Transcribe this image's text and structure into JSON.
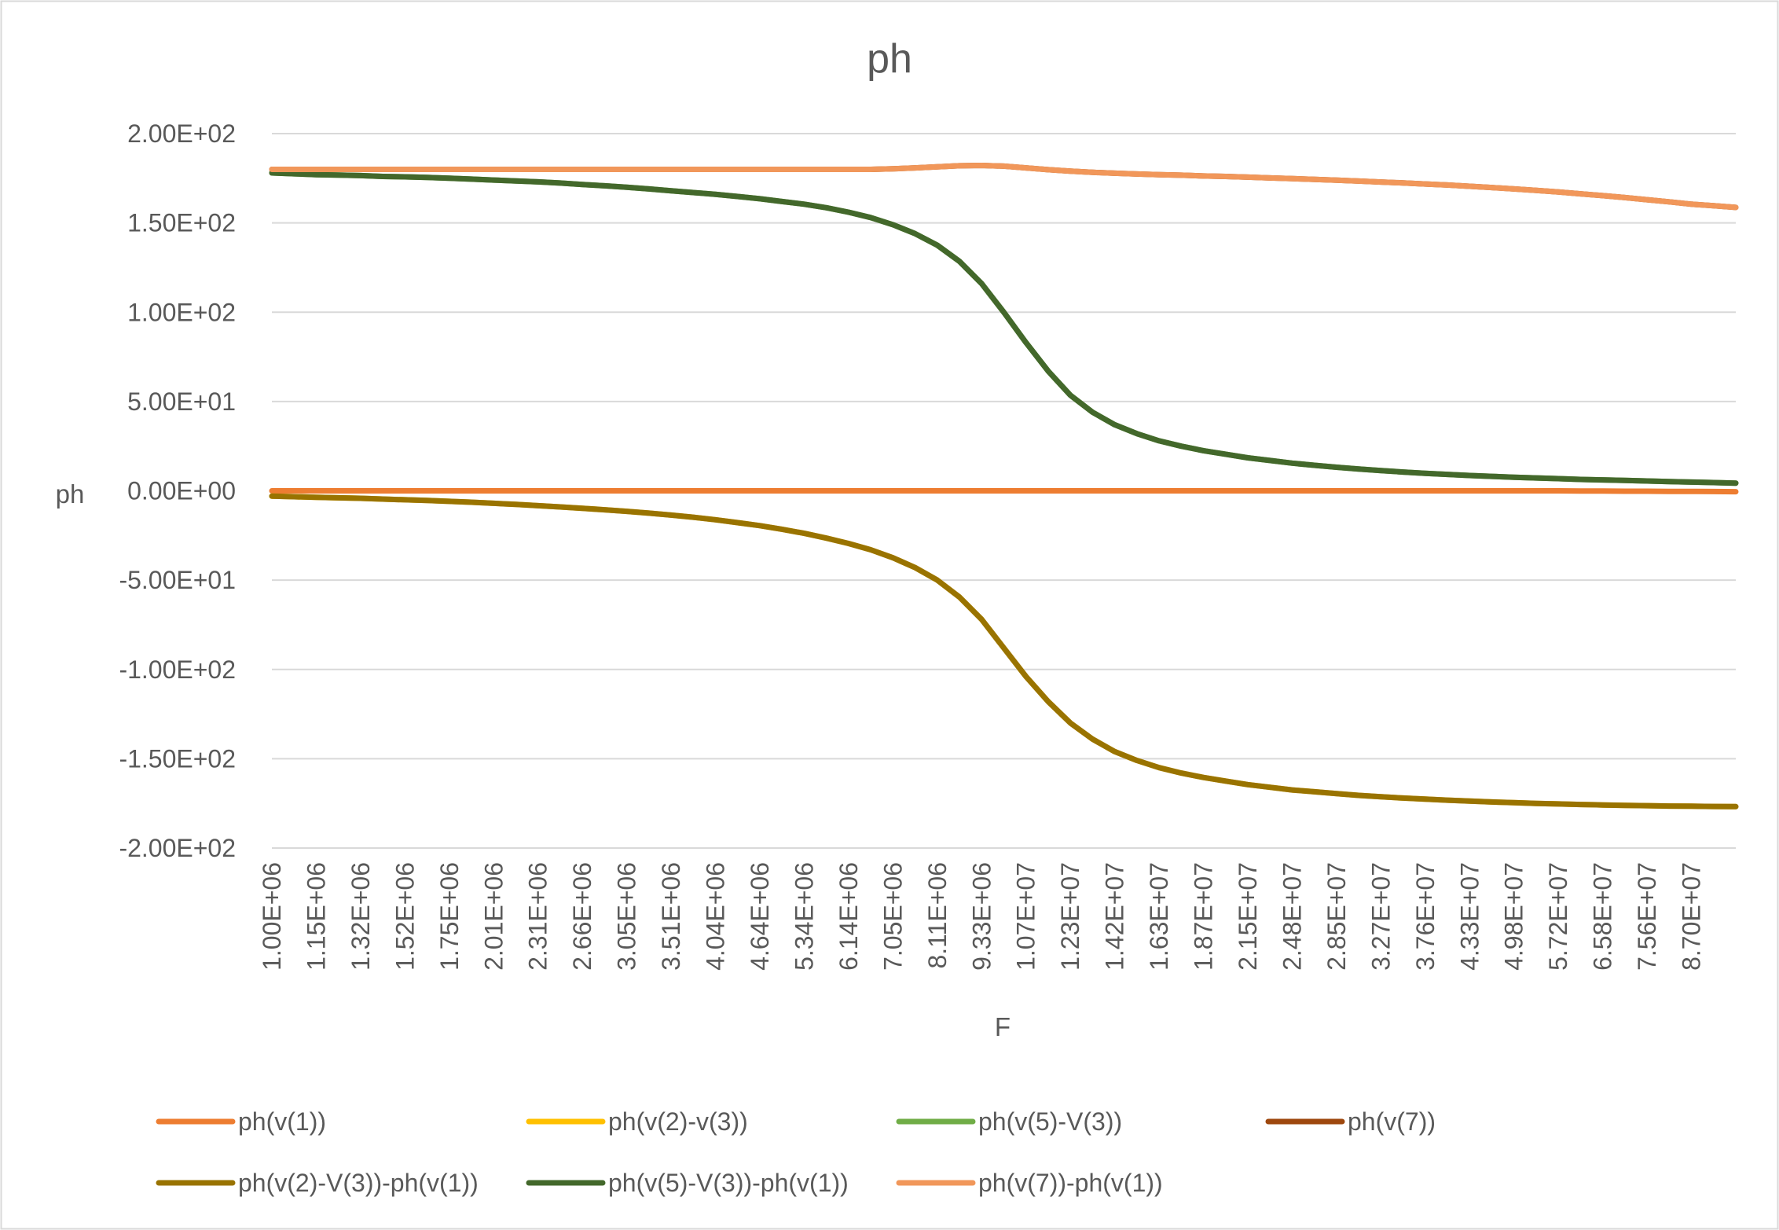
{
  "chart_data": {
    "type": "line",
    "title": "ph",
    "x_label": "F",
    "y_label": "ph",
    "categories": [
      "1.00E+06",
      null,
      "1.15E+06",
      null,
      "1.32E+06",
      null,
      "1.52E+06",
      null,
      "1.75E+06",
      null,
      "2.01E+06",
      null,
      "2.31E+06",
      null,
      "2.66E+06",
      null,
      "3.05E+06",
      null,
      "3.51E+06",
      null,
      "4.04E+06",
      null,
      "4.64E+06",
      null,
      "5.34E+06",
      null,
      "6.14E+06",
      null,
      "7.05E+06",
      null,
      "8.11E+06",
      null,
      "9.33E+06",
      null,
      "1.07E+07",
      null,
      "1.23E+07",
      null,
      "1.42E+07",
      null,
      "1.63E+07",
      null,
      "1.87E+07",
      null,
      "2.15E+07",
      null,
      "2.48E+07",
      null,
      "2.85E+07",
      null,
      "3.27E+07",
      null,
      "3.76E+07",
      null,
      "4.33E+07",
      null,
      "4.98E+07",
      null,
      "5.72E+07",
      null,
      "6.58E+07",
      null,
      "7.56E+07",
      null,
      "8.70E+07",
      null,
      null
    ],
    "ylim": [
      -200,
      200
    ],
    "yticks": [
      {
        "value": -200,
        "label": "-2.00E+02"
      },
      {
        "value": -150,
        "label": "-1.50E+02"
      },
      {
        "value": -100,
        "label": "-1.00E+02"
      },
      {
        "value": -50,
        "label": "-5.00E+01"
      },
      {
        "value": 0,
        "label": "0.00E+00"
      },
      {
        "value": 50,
        "label": "5.00E+01"
      },
      {
        "value": 100,
        "label": "1.00E+02"
      },
      {
        "value": 150,
        "label": "1.50E+02"
      },
      {
        "value": 200,
        "label": "2.00E+02"
      }
    ],
    "grid": true,
    "legend": "bottom",
    "series": [
      {
        "name": "ph(v(1))",
        "color": "#ED7D31",
        "values": [
          0,
          0,
          0,
          0,
          0,
          0,
          0,
          0,
          0,
          0,
          0,
          0,
          0,
          0,
          0,
          0,
          0,
          0,
          0,
          0,
          0,
          0,
          0,
          0,
          0,
          0,
          0,
          0,
          0,
          0,
          0,
          0,
          0,
          0,
          0,
          0,
          0,
          0,
          0,
          0,
          0,
          0,
          0,
          0,
          0,
          0,
          0,
          0,
          0,
          0,
          0,
          0,
          0,
          0,
          0,
          0,
          0,
          0,
          0,
          -0.1,
          -0.1,
          -0.2,
          -0.2,
          -0.3,
          -0.3,
          -0.4,
          -0.5
        ]
      },
      {
        "name": "ph(v(2)-v(3))",
        "color": "#FFC000",
        "values": [
          -3,
          -3.3,
          -3.6,
          -3.9,
          -4.2,
          -4.6,
          -5,
          -5.4,
          -5.9,
          -6.4,
          -7,
          -7.6,
          -8.3,
          -9,
          -9.8,
          -10.6,
          -11.5,
          -12.5,
          -13.6,
          -14.8,
          -16.2,
          -17.8,
          -19.5,
          -21.5,
          -23.8,
          -26.5,
          -29.5,
          -33,
          -37.5,
          -43,
          -50,
          -59.5,
          -72,
          -88,
          -104,
          -118,
          -130,
          -139,
          -146,
          -151,
          -155,
          -158,
          -160.5,
          -162.5,
          -164.5,
          -166,
          -167.5,
          -168.5,
          -169.5,
          -170.5,
          -171.3,
          -172,
          -172.6,
          -173.2,
          -173.7,
          -174.2,
          -174.6,
          -175,
          -175.3,
          -175.6,
          -175.9,
          -176.1,
          -176.3,
          -176.5,
          -176.6,
          -176.7,
          -176.8
        ]
      },
      {
        "name": "ph(v(5)-V(3))",
        "color": "#70AD47",
        "values": [
          178,
          177.5,
          177,
          176.8,
          176.5,
          176,
          175.8,
          175.5,
          175,
          174.5,
          174,
          173.5,
          173,
          172.3,
          171.5,
          170.8,
          170,
          169,
          168,
          167,
          166,
          164.8,
          163.5,
          162,
          160.5,
          158.5,
          156,
          153,
          149,
          144,
          137.5,
          128.5,
          116,
          100,
          83,
          67,
          53.5,
          44,
          37,
          32,
          28,
          25,
          22.5,
          20.5,
          18.5,
          17,
          15.5,
          14.3,
          13.2,
          12.2,
          11.3,
          10.5,
          9.8,
          9.2,
          8.6,
          8.1,
          7.6,
          7.2,
          6.8,
          6.4,
          6.1,
          5.8,
          5.5,
          5.2,
          4.9,
          4.6,
          4.3
        ]
      },
      {
        "name": "ph(v(7))",
        "color": "#9E480E",
        "values": [
          180,
          180,
          180,
          180,
          180,
          180,
          180,
          180,
          180,
          180,
          180,
          180,
          180,
          180,
          180,
          180,
          180,
          180,
          180,
          180,
          180,
          180,
          180,
          180,
          180,
          180,
          180,
          180,
          180.3,
          180.8,
          181.4,
          182,
          182.2,
          181.8,
          180.8,
          179.8,
          179,
          178.3,
          177.8,
          177.4,
          177,
          176.7,
          176.3,
          176,
          175.6,
          175.2,
          174.8,
          174.4,
          173.9,
          173.4,
          172.9,
          172.4,
          171.8,
          171.2,
          170.5,
          169.8,
          169,
          168.2,
          167.3,
          166.3,
          165.3,
          164.2,
          163,
          161.8,
          160.5,
          159.6,
          158.7
        ]
      },
      {
        "name": "ph(v(2)-V(3))-ph(v(1))",
        "color": "#997300",
        "values": [
          -3,
          -3.3,
          -3.6,
          -3.9,
          -4.2,
          -4.6,
          -5,
          -5.4,
          -5.9,
          -6.4,
          -7,
          -7.6,
          -8.3,
          -9,
          -9.8,
          -10.6,
          -11.5,
          -12.5,
          -13.6,
          -14.8,
          -16.2,
          -17.8,
          -19.5,
          -21.5,
          -23.8,
          -26.5,
          -29.5,
          -33,
          -37.5,
          -43,
          -50,
          -59.5,
          -72,
          -88,
          -104,
          -118,
          -130,
          -139,
          -146,
          -151,
          -155,
          -158,
          -160.5,
          -162.5,
          -164.5,
          -166,
          -167.5,
          -168.5,
          -169.5,
          -170.5,
          -171.3,
          -172,
          -172.6,
          -173.2,
          -173.7,
          -174.2,
          -174.6,
          -175,
          -175.3,
          -175.6,
          -175.9,
          -176.1,
          -176.3,
          -176.5,
          -176.6,
          -176.7,
          -176.8
        ]
      },
      {
        "name": "ph(v(5)-V(3))-ph(v(1))",
        "color": "#43682B",
        "values": [
          178,
          177.5,
          177,
          176.8,
          176.5,
          176,
          175.8,
          175.5,
          175,
          174.5,
          174,
          173.5,
          173,
          172.3,
          171.5,
          170.8,
          170,
          169,
          168,
          167,
          166,
          164.8,
          163.5,
          162,
          160.5,
          158.5,
          156,
          153,
          149,
          144,
          137.5,
          128.5,
          116,
          100,
          83,
          67,
          53.5,
          44,
          37,
          32,
          28,
          25,
          22.5,
          20.5,
          18.5,
          17,
          15.5,
          14.3,
          13.2,
          12.2,
          11.3,
          10.5,
          9.8,
          9.2,
          8.6,
          8.1,
          7.6,
          7.2,
          6.8,
          6.4,
          6.1,
          5.8,
          5.5,
          5.2,
          4.9,
          4.6,
          4.3
        ]
      },
      {
        "name": "ph(v(7))-ph(v(1))",
        "color": "#F1975A",
        "values": [
          180,
          180,
          180,
          180,
          180,
          180,
          180,
          180,
          180,
          180,
          180,
          180,
          180,
          180,
          180,
          180,
          180,
          180,
          180,
          180,
          180,
          180,
          180,
          180,
          180,
          180,
          180,
          180,
          180.3,
          180.8,
          181.4,
          182,
          182.2,
          181.8,
          180.8,
          179.8,
          179,
          178.3,
          177.8,
          177.4,
          177,
          176.7,
          176.3,
          176,
          175.6,
          175.2,
          174.8,
          174.4,
          173.9,
          173.4,
          172.9,
          172.4,
          171.8,
          171.2,
          170.5,
          169.8,
          169,
          168.2,
          167.3,
          166.3,
          165.3,
          164.2,
          163,
          161.8,
          160.5,
          159.6,
          158.7
        ]
      }
    ]
  }
}
